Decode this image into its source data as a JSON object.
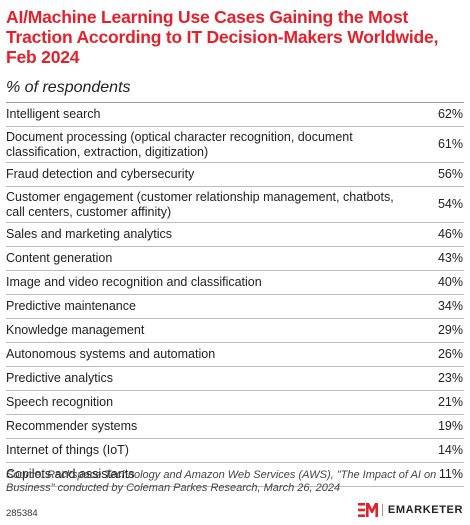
{
  "title": "AI/Machine Learning Use Cases Gaining the Most Traction According to IT Decision-Makers Worldwide, Feb 2024",
  "subtitle": "% of respondents",
  "chart_data": {
    "type": "table",
    "title": "AI/Machine Learning Use Cases Gaining the Most Traction According to IT Decision-Makers Worldwide, Feb 2024",
    "unit": "% of respondents",
    "rows": [
      {
        "label": "Intelligent search",
        "value": "62%"
      },
      {
        "label": "Document processing (optical character recognition, document classification, extraction, digitization)",
        "value": "61%"
      },
      {
        "label": "Fraud detection and cybersecurity",
        "value": "56%"
      },
      {
        "label": "Customer engagement (customer relationship management, chatbots, call centers, customer affinity)",
        "value": "54%"
      },
      {
        "label": "Sales and marketing analytics",
        "value": "46%"
      },
      {
        "label": "Content generation",
        "value": "43%"
      },
      {
        "label": "Image and video recognition and classification",
        "value": "40%"
      },
      {
        "label": "Predictive maintenance",
        "value": "34%"
      },
      {
        "label": "Knowledge management",
        "value": "29%"
      },
      {
        "label": "Autonomous systems and automation",
        "value": "26%"
      },
      {
        "label": "Predictive analytics",
        "value": "23%"
      },
      {
        "label": "Speech recognition",
        "value": "21%"
      },
      {
        "label": "Recommender systems",
        "value": "19%"
      },
      {
        "label": "Internet of things (IoT)",
        "value": "14%"
      },
      {
        "label": "Copilots and assistants",
        "value": "11%"
      }
    ]
  },
  "source": "Source: Rackspace Technology and Amazon Web Services (AWS), \"The Impact of AI on Business\" conducted by Coleman Parkes Research, March 26, 2024",
  "chart_id": "285384",
  "brand": {
    "name": "EMARKETER",
    "accent_color": "#e4202a",
    "logo_icon": "em-logo-icon"
  }
}
